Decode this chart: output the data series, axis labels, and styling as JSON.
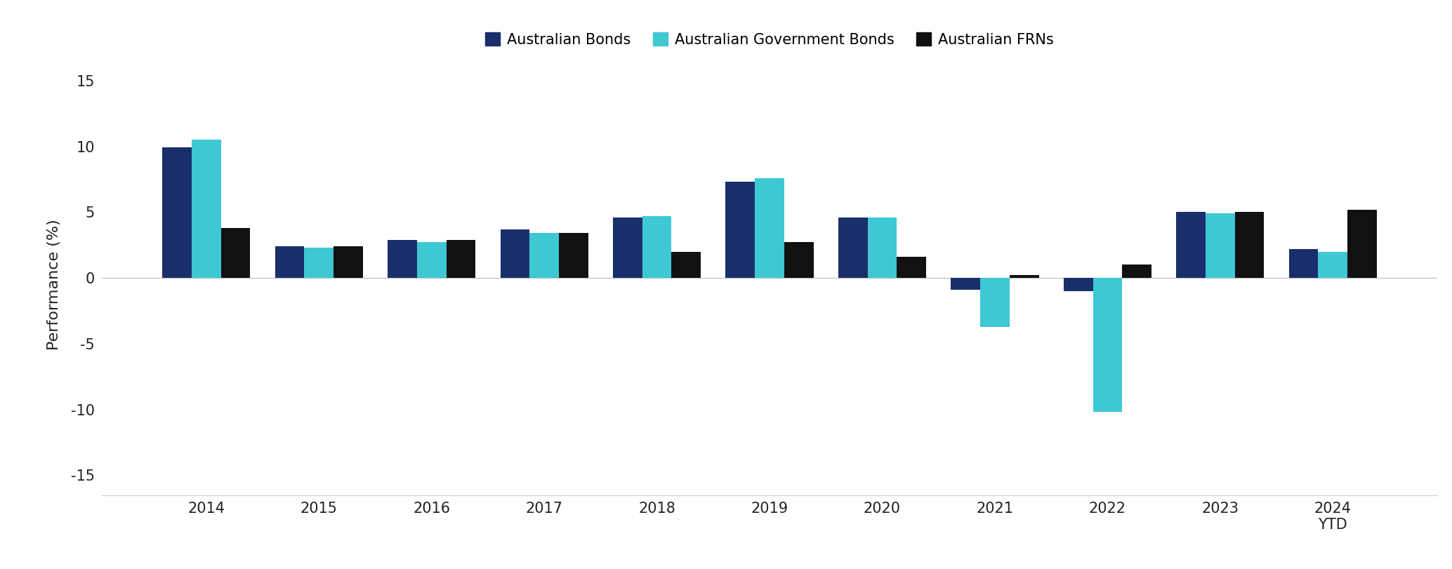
{
  "categories": [
    "2014",
    "2015",
    "2016",
    "2017",
    "2018",
    "2019",
    "2020",
    "2021",
    "2022",
    "2023",
    "2024\nYTD"
  ],
  "australian_bonds": [
    9.9,
    2.4,
    2.9,
    3.7,
    4.6,
    7.3,
    4.6,
    -0.9,
    -1.0,
    5.0,
    2.2
  ],
  "australian_gov_bonds": [
    10.5,
    2.3,
    2.7,
    3.4,
    4.7,
    7.6,
    4.6,
    -3.7,
    -10.2,
    4.9,
    2.0
  ],
  "australian_frns": [
    3.8,
    2.4,
    2.9,
    3.4,
    2.0,
    2.7,
    1.6,
    0.2,
    1.0,
    5.0,
    5.2
  ],
  "colors": {
    "australian_bonds": "#1a2e6c",
    "australian_gov_bonds": "#3ec8d4",
    "australian_frns": "#111111"
  },
  "ylabel": "Performance (%)",
  "ylim": [
    -16.5,
    15.5
  ],
  "yticks": [
    -15,
    -10,
    -5,
    0,
    5,
    10,
    15
  ],
  "legend_labels": [
    "Australian Bonds",
    "Australian Government Bonds",
    "Australian FRNs"
  ],
  "background_color": "#ffffff",
  "bar_width": 0.26
}
